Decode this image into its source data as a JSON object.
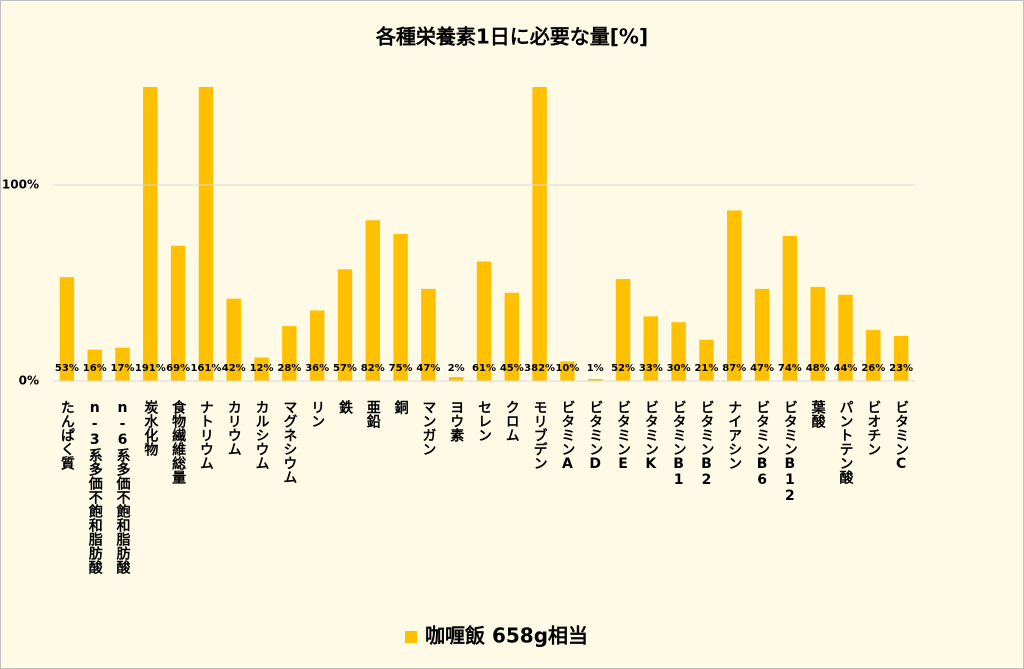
{
  "chart_data": {
    "type": "bar",
    "title": "各種栄養素1日に必要な量[%]",
    "categories": [
      "たんぱく質",
      "n-3系多価不飽和脂肪酸",
      "n-6系多価不飽和脂肪酸",
      "炭水化物",
      "食物繊維総量",
      "ナトリウム",
      "カリウム",
      "カルシウム",
      "マグネシウム",
      "リン",
      "鉄",
      "亜鉛",
      "銅",
      "マンガン",
      "ヨウ素",
      "セレン",
      "クロム",
      "モリブデン",
      "ビタミンA",
      "ビタミンD",
      "ビタミンE",
      "ビタミンK",
      "ビタミンB1",
      "ビタミンB2",
      "ナイアシン",
      "ビタミンB6",
      "ビタミンB12",
      "葉酸",
      "パントテン酸",
      "ビオチン",
      "ビタミンC"
    ],
    "series": [
      {
        "name": "咖喱飯 658g相当",
        "color": "#ffc000",
        "values": [
          53,
          16,
          17,
          191,
          69,
          161,
          42,
          12,
          28,
          36,
          57,
          82,
          75,
          47,
          2,
          61,
          45,
          382,
          10,
          1,
          52,
          33,
          30,
          21,
          87,
          47,
          74,
          48,
          44,
          26,
          23
        ],
        "value_labels": [
          "53%",
          "16%",
          "17%",
          "191%",
          "69%",
          "161%",
          "42%",
          "12%",
          "28%",
          "36%",
          "57%",
          "82%",
          "75%",
          "47%",
          "2%",
          "61%",
          "45%",
          "382%",
          "10%",
          "1%",
          "52%",
          "33%",
          "30%",
          "21%",
          "87%",
          "47%",
          "74%",
          "48%",
          "44%",
          "26%",
          "23%"
        ]
      }
    ],
    "ylim": [
      0,
      150
    ],
    "yticks": [
      {
        "value": 0,
        "label": "0%"
      },
      {
        "value": 100,
        "label": "100%"
      }
    ],
    "grid": true,
    "legend": "bottom"
  }
}
